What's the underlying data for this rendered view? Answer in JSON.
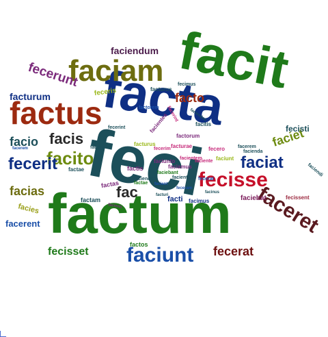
{
  "cloud": {
    "words": [
      {
        "text": "feci",
        "color": "#1c4f5a",
        "size": 98
      },
      {
        "text": "factum",
        "color": "#1f7a1a",
        "size": 82
      },
      {
        "text": "facit",
        "color": "#1f7a1a",
        "size": 78
      },
      {
        "text": "facta",
        "color": "#0f2f84",
        "size": 76
      },
      {
        "text": "factus",
        "color": "#9c2a10",
        "size": 46
      },
      {
        "text": "faciam",
        "color": "#6d6d10",
        "size": 44
      },
      {
        "text": "fecisse",
        "color": "#c6102a",
        "size": 30
      },
      {
        "text": "faciunt",
        "color": "#1a4fa8",
        "size": 30
      },
      {
        "text": "faceret",
        "color": "#5a1a20",
        "size": 30
      },
      {
        "text": "facito",
        "color": "#6d8b10",
        "size": 26
      },
      {
        "text": "fecerit",
        "color": "#0f2f84",
        "size": 24
      },
      {
        "text": "faciat",
        "color": "#0f2f84",
        "size": 24
      },
      {
        "text": "facis",
        "color": "#2a2a2a",
        "size": 22
      },
      {
        "text": "fecerunt",
        "color": "#7b2a7b",
        "size": 19
      },
      {
        "text": "fac",
        "color": "#2a2a2a",
        "size": 22
      },
      {
        "text": "facias",
        "color": "#6d6d10",
        "size": 18
      },
      {
        "text": "facto",
        "color": "#9c2a10",
        "size": 18
      },
      {
        "text": "faciet",
        "color": "#6d8b10",
        "size": 18
      },
      {
        "text": "facio",
        "color": "#1c4f5a",
        "size": 18
      },
      {
        "text": "fecerat",
        "color": "#6d1010",
        "size": 18
      },
      {
        "text": "fecisset",
        "color": "#1f7a1a",
        "size": 16
      },
      {
        "text": "faciendum",
        "color": "#4a1a4a",
        "size": 14
      },
      {
        "text": "facturum",
        "color": "#0f2f84",
        "size": 14
      },
      {
        "text": "facerent",
        "color": "#1a4fa8",
        "size": 13
      },
      {
        "text": "fecisti",
        "color": "#1c4f5a",
        "size": 12
      },
      {
        "text": "facies",
        "color": "#9aa01a",
        "size": 11
      },
      {
        "text": "faciebat",
        "color": "#7b1a5a",
        "size": 10
      },
      {
        "text": "fecissent",
        "color": "#9c2a40",
        "size": 8
      },
      {
        "text": "feceris",
        "color": "#9ab81a",
        "size": 10
      },
      {
        "text": "facti",
        "color": "#0f2f84",
        "size": 11
      },
      {
        "text": "facimus",
        "color": "#0f2f84",
        "size": 8
      },
      {
        "text": "factam",
        "color": "#1c4f5a",
        "size": 9
      },
      {
        "text": "facturus",
        "color": "#1c4f5a",
        "size": 8
      },
      {
        "text": "factae",
        "color": "#1c4f5a",
        "size": 8
      },
      {
        "text": "facitis",
        "color": "#1c4f5a",
        "size": 8
      },
      {
        "text": "factos",
        "color": "#1f7a1a",
        "size": 9
      },
      {
        "text": "facerem",
        "color": "#1c4f5a",
        "size": 7
      },
      {
        "text": "facienda",
        "color": "#1c4f5a",
        "size": 7
      },
      {
        "text": "faciendi",
        "color": "#1c4f5a",
        "size": 7
      },
      {
        "text": "facere",
        "color": "#1c4f5a",
        "size": 7
      },
      {
        "text": "fecimus",
        "color": "#1c4f5a",
        "size": 7
      },
      {
        "text": "fecerint",
        "color": "#1c4f5a",
        "size": 7
      },
      {
        "text": "faciendae",
        "color": "#1c4f5a",
        "size": 7
      },
      {
        "text": "factorum",
        "color": "#7b2a7b",
        "size": 8
      },
      {
        "text": "factas",
        "color": "#7b2a7b",
        "size": 9
      },
      {
        "text": "factis",
        "color": "#7b2a7b",
        "size": 9
      },
      {
        "text": "facientes",
        "color": "#7b2a7b",
        "size": 8
      },
      {
        "text": "faciamus",
        "color": "#7b2a7b",
        "size": 8
      },
      {
        "text": "faciunto",
        "color": "#7b2a7b",
        "size": 8
      },
      {
        "text": "facerint",
        "color": "#c62a7a",
        "size": 7
      },
      {
        "text": "fecero",
        "color": "#c62a7a",
        "size": 8
      },
      {
        "text": "fecerim",
        "color": "#c62a7a",
        "size": 7
      },
      {
        "text": "facturae",
        "color": "#c62a7a",
        "size": 8
      },
      {
        "text": "facientem",
        "color": "#c62a7a",
        "size": 7
      },
      {
        "text": "faciente",
        "color": "#c62a7a",
        "size": 7
      },
      {
        "text": "facturus",
        "color": "#9ab81a",
        "size": 8
      },
      {
        "text": "faciunt",
        "color": "#9ab81a",
        "size": 8
      },
      {
        "text": "fecerat",
        "color": "#1a4fa8",
        "size": 7
      },
      {
        "text": "faciendas",
        "color": "#1c4f5a",
        "size": 6
      },
      {
        "text": "factae",
        "color": "#1f7a1a",
        "size": 7
      },
      {
        "text": "faciebant",
        "color": "#1f7a1a",
        "size": 7
      },
      {
        "text": "facientium",
        "color": "#1c4f5a",
        "size": 7
      },
      {
        "text": "factorem",
        "color": "#1a4fa8",
        "size": 7
      },
      {
        "text": "facient",
        "color": "#1a4fa8",
        "size": 6
      },
      {
        "text": "feceram",
        "color": "#1a4fa8",
        "size": 6
      },
      {
        "text": "facinus",
        "color": "#1c4f5a",
        "size": 6
      },
      {
        "text": "faciens",
        "color": "#7b2a7b",
        "size": 6
      },
      {
        "text": "facerem",
        "color": "#1a4fa8",
        "size": 6
      },
      {
        "text": "facturi",
        "color": "#1c4f5a",
        "size": 6
      }
    ]
  }
}
